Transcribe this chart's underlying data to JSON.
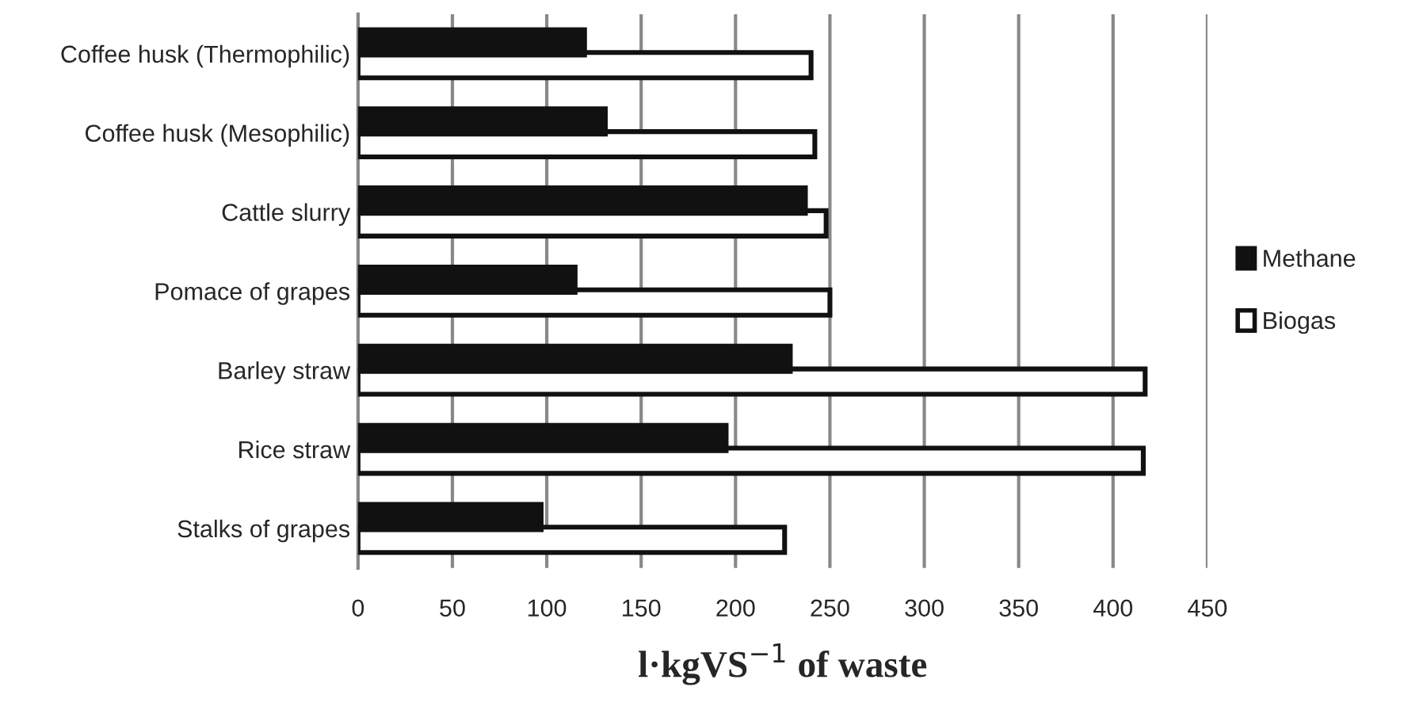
{
  "chart_data": {
    "type": "bar",
    "orientation": "horizontal",
    "xlabel": "l·kgVS$^{−1}$ of waste",
    "categories": [
      "Coffee husk (Thermophilic)",
      "Coffee husk (Mesophilic)",
      "Cattle slurry",
      "Pomace of grapes",
      "Barley straw",
      "Rice straw",
      "Stalks of grapes"
    ],
    "series": [
      {
        "name": "Methane",
        "color": "#111111",
        "values": [
          120,
          131,
          237,
          115,
          229,
          195,
          97
        ]
      },
      {
        "name": "Biogas",
        "color": "#ffffff",
        "values": [
          240,
          242,
          248,
          250,
          417,
          416,
          226
        ]
      }
    ],
    "xlim": [
      0,
      450
    ],
    "xticks": [
      0,
      50,
      100,
      150,
      200,
      250,
      300,
      350,
      400,
      450
    ],
    "grid": "x",
    "legend": "right"
  }
}
